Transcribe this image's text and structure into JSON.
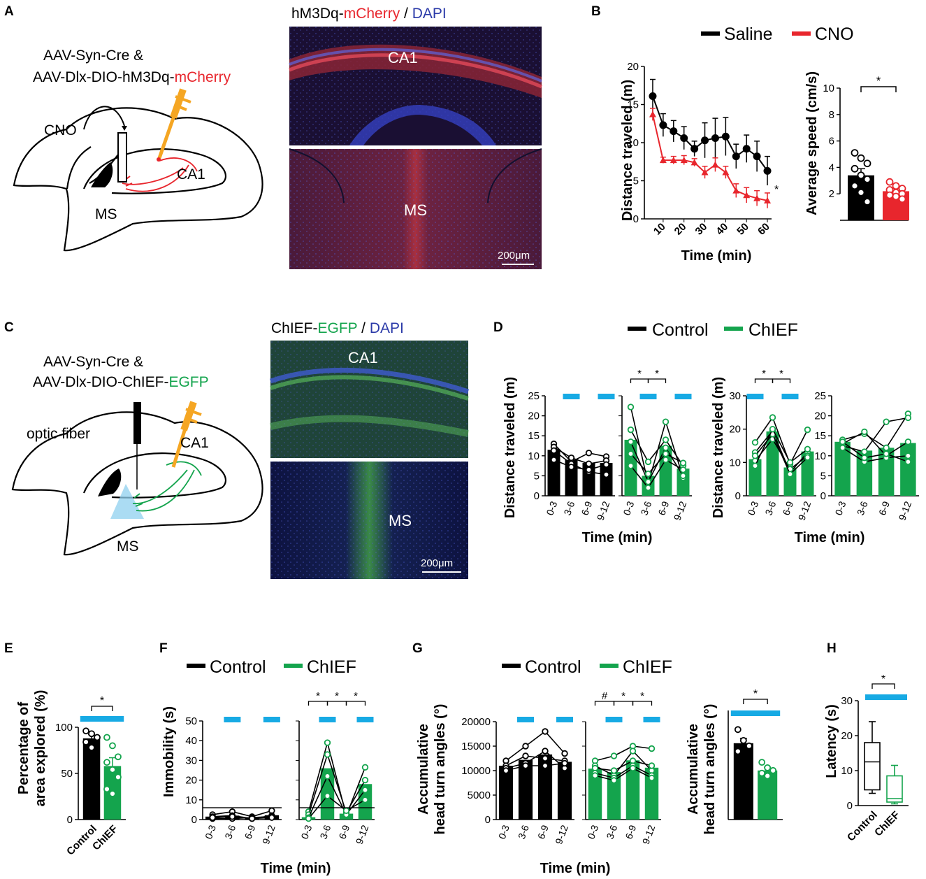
{
  "colors": {
    "black": "#000000",
    "red": "#e8262d",
    "green": "#14a44d",
    "blue_bar": "#17aae4",
    "orange": "#f5a623",
    "dapi_blue": "#2b3aa8",
    "mcherry_red": "#c72a3a",
    "egfp_green": "#3fae4b"
  },
  "panels": {
    "A": {
      "letter": "A",
      "construct_line1": "AAV-Syn-Cre &",
      "construct_line2_prefix": "AAV-Dlx-DIO-hM3Dq-",
      "construct_line2_colored": "mCherry",
      "cno_label": "CNO",
      "ca1_label": "CA1",
      "ms_label": "MS",
      "micro_title_a": "hM3Dq-",
      "micro_title_b": "mCherry",
      "micro_title_c": " / ",
      "micro_title_d": "DAPI",
      "micro_ca1": "CA1",
      "micro_ms": "MS",
      "scale": "200μm"
    },
    "B": {
      "letter": "B",
      "legend": [
        "Saline",
        "CNO"
      ],
      "ylabel": "Distance traveled (m)",
      "xlabel": "Time (min)",
      "sig": "*",
      "bar_ylabel": "Average speed (cm/s)",
      "bar_sig": "*"
    },
    "C": {
      "letter": "C",
      "construct_line1": "AAV-Syn-Cre  &",
      "construct_line2_prefix": "AAV-Dlx-DIO-ChIEF-",
      "construct_line2_colored": "EGFP",
      "fiber_label": "optic fiber",
      "ca1_label": "CA1",
      "ms_label": "MS",
      "micro_title_a": "ChIEF-",
      "micro_title_b": "EGFP",
      "micro_title_c": " / ",
      "micro_title_d": "DAPI",
      "micro_ca1": "CA1",
      "micro_ms": "MS",
      "scale": "200μm"
    },
    "D": {
      "letter": "D",
      "legend": [
        "Control",
        "ChIEF"
      ],
      "ylabel": "Distance traveled (m)",
      "ylabel2": "Distance traveled (m)",
      "xlabel": "Time (min)",
      "xlabel2": "Time (min)"
    },
    "E": {
      "letter": "E",
      "ylabel_line1": "Percentage of",
      "ylabel_line2": "area explored (%)",
      "sig": "*"
    },
    "F": {
      "letter": "F",
      "legend": [
        "Control",
        "ChIEF"
      ],
      "ylabel": "Immobility (s)",
      "xlabel": "Time (min)"
    },
    "G": {
      "letter": "G",
      "legend": [
        "Control",
        "ChIEF"
      ],
      "ylabel_line1": "Accumulative",
      "ylabel_line2": "head turn angles (°)",
      "xlabel": "Time (min)",
      "bar_ylabel_line1": "Accumulative",
      "bar_ylabel_line2": "head turn angles (°)",
      "bar_sig": "*"
    },
    "H": {
      "letter": "H",
      "ylabel": "Latency (s)",
      "sig": "*"
    }
  },
  "chart_data": [
    {
      "id": "B-line",
      "type": "line",
      "xlabel": "Time (min)",
      "ylabel": "Distance traveled (m)",
      "x": [
        5,
        10,
        15,
        20,
        25,
        30,
        35,
        40,
        45,
        50,
        55,
        60
      ],
      "xticks": [
        10,
        20,
        30,
        40,
        50,
        60
      ],
      "xlim": [
        3,
        62
      ],
      "ylim": [
        0,
        20
      ],
      "yticks": [
        0,
        5,
        10,
        15,
        20
      ],
      "series": [
        {
          "name": "Saline",
          "color": "#000000",
          "values": [
            16.1,
            12.3,
            11.5,
            10.6,
            9.2,
            10.3,
            10.6,
            10.8,
            8.2,
            9.2,
            8.2,
            6.3
          ],
          "errors": [
            2.2,
            1.5,
            1.4,
            1.5,
            1.0,
            2.3,
            2.6,
            2.5,
            1.6,
            1.8,
            2.0,
            1.9
          ]
        },
        {
          "name": "CNO",
          "color": "#e8262d",
          "values": [
            13.7,
            7.7,
            7.7,
            7.7,
            7.4,
            6.1,
            7.1,
            6.1,
            3.7,
            3.1,
            2.7,
            2.4
          ],
          "errors": [
            0.8,
            0.4,
            0.5,
            0.6,
            0.5,
            0.8,
            0.9,
            0.8,
            0.9,
            1.0,
            1.0,
            1.0
          ]
        }
      ],
      "annotation": "*"
    },
    {
      "id": "B-bar",
      "type": "bar",
      "ylabel": "Average speed (cm/s)",
      "categories": [
        "Saline",
        "CNO"
      ],
      "ylim": [
        0,
        10
      ],
      "yticks": [
        2,
        4,
        6,
        8,
        10
      ],
      "values": [
        3.4,
        2.2
      ],
      "errors": [
        0.5,
        0.2
      ],
      "points": [
        [
          5.1,
          4.7,
          4.3,
          3.9,
          3.4,
          3.1,
          2.6,
          2.1,
          1.4
        ],
        [
          2.9,
          2.6,
          2.4,
          2.3,
          2.1,
          2.0,
          1.9,
          1.8,
          1.6
        ]
      ],
      "annotation": "*"
    },
    {
      "id": "D1",
      "type": "bar",
      "group": "Control",
      "categories": [
        "0-3",
        "3-6",
        "6-9",
        "9-12"
      ],
      "ylim": [
        0,
        25
      ],
      "yticks": [
        0,
        5,
        10,
        15,
        20,
        25
      ],
      "values": [
        11.5,
        9.0,
        8.2,
        8.2
      ],
      "lines": [
        [
          13.0,
          8.5,
          10.7,
          9.8
        ],
        [
          12.2,
          9.5,
          8.0,
          8.8
        ],
        [
          11.3,
          8.0,
          6.0,
          5.3
        ],
        [
          9.0,
          7.2,
          6.5,
          7.8
        ]
      ],
      "light_on": [
        "3-6",
        "9-12"
      ]
    },
    {
      "id": "D2",
      "type": "bar",
      "group": "ChIEF",
      "categories": [
        "0-3",
        "3-6",
        "6-9",
        "9-12"
      ],
      "ylim": [
        0,
        25
      ],
      "yticks": [
        0,
        5,
        10,
        15,
        20,
        25
      ],
      "values": [
        14.0,
        5.0,
        12.5,
        6.8
      ],
      "lines": [
        [
          22.2,
          3.0,
          18.5,
          4.5
        ],
        [
          16.5,
          8.5,
          14.0,
          7.5
        ],
        [
          13.5,
          3.5,
          12.0,
          5.0
        ],
        [
          10.5,
          5.5,
          10.5,
          8.2
        ],
        [
          7.5,
          2.0,
          9.0,
          6.5
        ]
      ],
      "light_on": [
        "3-6",
        "9-12"
      ],
      "sig_brackets": [
        "*",
        "*"
      ]
    },
    {
      "id": "D3",
      "type": "bar",
      "group": "ChIEF",
      "categories": [
        "0-3",
        "3-6",
        "6-9",
        "9-12"
      ],
      "ylim": [
        0,
        30
      ],
      "yticks": [
        0,
        10,
        20,
        30
      ],
      "values": [
        11.0,
        19.3,
        8.5,
        13.3
      ],
      "lines": [
        [
          16.0,
          23.5,
          9.5,
          19.8
        ],
        [
          13.0,
          19.5,
          7.0,
          13.0
        ],
        [
          10.5,
          17.0,
          8.0,
          12.0
        ],
        [
          12.0,
          18.5,
          6.5,
          11.5
        ],
        [
          9.0,
          20.0,
          10.0,
          14.0
        ]
      ],
      "light_on": [
        "0-3",
        "6-9"
      ],
      "sig_brackets": [
        "*",
        "*"
      ]
    },
    {
      "id": "D4",
      "type": "bar",
      "group": "ChIEF",
      "categories": [
        "0-3",
        "3-6",
        "6-9",
        "9-12"
      ],
      "ylim": [
        0,
        25
      ],
      "yticks": [
        0,
        5,
        10,
        15,
        20,
        25
      ],
      "values": [
        13.5,
        11.3,
        12.0,
        13.2
      ],
      "lines": [
        [
          14.0,
          15.5,
          12.0,
          20.5
        ],
        [
          12.5,
          11.0,
          18.5,
          19.5
        ],
        [
          13.0,
          16.0,
          10.0,
          13.5
        ],
        [
          12.0,
          8.5,
          9.5,
          10.0
        ],
        [
          13.5,
          9.5,
          10.5,
          8.5
        ]
      ]
    },
    {
      "id": "E",
      "type": "bar",
      "categories": [
        "Control",
        "ChIEF"
      ],
      "ylim": [
        0,
        100
      ],
      "yticks": [
        0,
        50,
        100
      ],
      "values": [
        88,
        58
      ],
      "errors": [
        4,
        9
      ],
      "points": [
        [
          96,
          93,
          89,
          84,
          78
        ],
        [
          89,
          80,
          68,
          62,
          54,
          46,
          33,
          28
        ]
      ],
      "annotation": "*"
    },
    {
      "id": "F1",
      "type": "bar",
      "group": "Control",
      "categories": [
        "0-3",
        "3-6",
        "6-9",
        "9-12"
      ],
      "ylim": [
        0,
        50
      ],
      "yticks": [
        0,
        10,
        20,
        30,
        40,
        50
      ],
      "values": [
        1.5,
        2.0,
        1.0,
        2.2
      ],
      "lines": [
        [
          2.5,
          4.0,
          1.5,
          4.5
        ],
        [
          1.5,
          2.0,
          0.5,
          2.0
        ],
        [
          0.5,
          0.5,
          1.0,
          1.5
        ],
        [
          1.0,
          1.5,
          0.5,
          1.0
        ]
      ],
      "light_on": [
        "3-6",
        "9-12"
      ]
    },
    {
      "id": "F2",
      "type": "bar",
      "group": "ChIEF",
      "categories": [
        "0-3",
        "3-6",
        "6-9",
        "9-12"
      ],
      "ylim": [
        0,
        50
      ],
      "yticks": [
        0,
        10,
        20,
        30,
        40,
        50
      ],
      "values": [
        1.2,
        26.0,
        3.0,
        18.0
      ],
      "lines": [
        [
          4.0,
          39.0,
          2.0,
          26.5
        ],
        [
          2.5,
          33.0,
          3.5,
          20.0
        ],
        [
          1.0,
          22.0,
          2.5,
          15.0
        ],
        [
          0.5,
          12.0,
          4.5,
          10.0
        ]
      ],
      "light_on": [
        "3-6",
        "9-12"
      ],
      "sig_brackets": [
        "*",
        "*",
        "*"
      ]
    },
    {
      "id": "G1",
      "type": "bar",
      "group": "Control",
      "categories": [
        "0-3",
        "3-6",
        "6-9",
        "9-12"
      ],
      "ylim": [
        0,
        20000
      ],
      "yticks": [
        0,
        5000,
        10000,
        15000,
        20000
      ],
      "values": [
        11000,
        12200,
        13300,
        11800
      ],
      "lines": [
        [
          12000,
          15000,
          18000,
          13500
        ],
        [
          11000,
          13000,
          12500,
          12000
        ],
        [
          10500,
          11500,
          14000,
          10500
        ],
        [
          10000,
          11000,
          11000,
          11500
        ]
      ],
      "light_on": [
        "3-6",
        "9-12"
      ]
    },
    {
      "id": "G2",
      "type": "bar",
      "group": "ChIEF",
      "categories": [
        "0-3",
        "3-6",
        "6-9",
        "9-12"
      ],
      "ylim": [
        0,
        20000
      ],
      "yticks": [
        0,
        5000,
        10000,
        15000,
        20000
      ],
      "values": [
        10400,
        9700,
        12100,
        10600
      ],
      "lines": [
        [
          12000,
          13000,
          15000,
          14500
        ],
        [
          11000,
          9000,
          14000,
          10000
        ],
        [
          10500,
          10000,
          12000,
          11000
        ],
        [
          9500,
          8500,
          11000,
          9000
        ],
        [
          9000,
          8000,
          10500,
          8500
        ]
      ],
      "light_on": [
        "3-6",
        "9-12"
      ],
      "sig_brackets": [
        "#",
        "*",
        "*"
      ]
    },
    {
      "id": "G3",
      "type": "bar",
      "categories": [
        "Control",
        "ChIEF"
      ],
      "ylim": [
        0,
        20000
      ],
      "values": [
        14000,
        9000
      ],
      "errors": [
        900,
        600
      ],
      "points": [
        [
          16500,
          14500,
          13500,
          12500
        ],
        [
          10500,
          9500,
          9000,
          8500,
          8000
        ]
      ],
      "annotation": "*"
    },
    {
      "id": "H",
      "type": "box",
      "categories": [
        "Control",
        "ChIEF"
      ],
      "ylim": [
        0,
        30
      ],
      "yticks": [
        0,
        10,
        20,
        30
      ],
      "boxes": [
        {
          "min": 3.5,
          "q1": 4.5,
          "median": 12.5,
          "q3": 18.0,
          "max": 24.0
        },
        {
          "min": 0.5,
          "q1": 1.0,
          "median": 2.0,
          "q3": 8.5,
          "max": 11.5
        }
      ],
      "annotation": "*"
    }
  ]
}
